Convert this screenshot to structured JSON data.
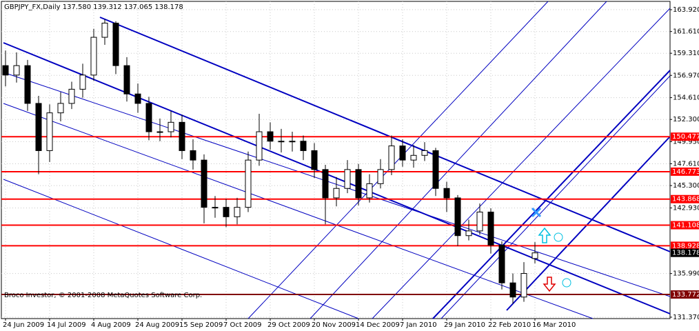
{
  "chart_data": {
    "type": "candlestick",
    "title": "GBPJPY_FX,Daily 137.580 139.312 137.065 138.178",
    "footer": "Broco Investor, © 2001-2008 MetaQuotes Software Corp.",
    "categories": [
      "24 Jun 2009",
      null,
      null,
      null,
      "14 Jul 2009",
      null,
      null,
      null,
      "4 Aug 2009",
      null,
      null,
      null,
      "24 Aug 2009",
      null,
      null,
      null,
      "15 Sep 2009",
      null,
      null,
      null,
      "7 Oct 2009",
      null,
      null,
      null,
      "29 Oct 2009",
      null,
      null,
      null,
      "20 Nov 2009",
      null,
      null,
      null,
      "14 Dec 2009",
      null,
      null,
      null,
      "7 Jan 2010",
      null,
      null,
      null,
      "29 Jan 2010",
      null,
      null,
      null,
      "22 Feb 2010",
      null,
      null,
      null,
      "16 Mar 2010"
    ],
    "open": [
      158,
      157,
      158,
      154,
      149,
      153,
      154,
      155.5,
      157,
      161,
      162.5,
      158,
      155,
      154,
      151,
      151,
      152,
      149,
      148,
      143,
      143,
      142,
      143,
      148,
      151,
      150,
      150,
      150,
      149,
      147,
      144,
      145,
      147,
      144,
      145.5,
      147,
      149.5,
      148,
      148.5,
      149,
      145,
      144,
      140,
      140.5,
      142.5,
      139,
      135,
      133.5,
      137.58
    ],
    "high": [
      159.6,
      159.4,
      158.6,
      154.8,
      153.9,
      155.2,
      156.3,
      158.2,
      161.9,
      162.9,
      162.7,
      158.9,
      156.1,
      154.7,
      152.4,
      153.2,
      152.8,
      150.2,
      148.6,
      144.2,
      143.9,
      144.0,
      148.9,
      152.9,
      152.0,
      151.3,
      151.0,
      150.6,
      149.8,
      147.5,
      146.2,
      148.0,
      147.6,
      146.5,
      148.1,
      150.6,
      150.2,
      149.6,
      149.9,
      149.3,
      145.7,
      144.3,
      141.7,
      143.4,
      142.9,
      139.4,
      136.0,
      137.2,
      139.312
    ],
    "low": [
      155.8,
      156.2,
      153.2,
      146.5,
      147.8,
      152.1,
      153.4,
      154.6,
      156.4,
      160.2,
      157.1,
      154.2,
      153.0,
      150.1,
      150.0,
      150.4,
      148.1,
      147.0,
      141.3,
      141.9,
      140.9,
      141.2,
      142.5,
      147.4,
      149.1,
      148.8,
      148.9,
      148.0,
      146.1,
      141.2,
      143.1,
      144.5,
      143.2,
      143.5,
      145.0,
      146.4,
      147.3,
      147.2,
      147.9,
      144.2,
      142.5,
      138.9,
      139.5,
      140.1,
      138.1,
      134.3,
      132.8,
      133.0,
      137.065
    ],
    "close": [
      157,
      158,
      154,
      149,
      153,
      154,
      155.5,
      157,
      161,
      162.5,
      158,
      155,
      154,
      151,
      151,
      152,
      149,
      148,
      143,
      143,
      142,
      143,
      148,
      151,
      150,
      150,
      150,
      149,
      147,
      144,
      145,
      147,
      144,
      145.5,
      147,
      149.5,
      148,
      148.5,
      149,
      145,
      144,
      140,
      140.5,
      142.5,
      139,
      135,
      133.5,
      136,
      138.178
    ],
    "up_color": "#ffffff",
    "down_color": "#000000",
    "levels": [
      150.477,
      146.773,
      143.868,
      141.108,
      138.928,
      133.772
    ],
    "level_colors": [
      "#ff0000",
      "#ff0000",
      "#ff0000",
      "#ff0000",
      "#ff0000",
      "#800000"
    ],
    "last_price": 138.178,
    "ylim": [
      131.22,
      164.8
    ],
    "yticks": [
      {
        "value": 163.92,
        "label": "163.920"
      },
      {
        "value": 161.61,
        "label": "161.610"
      },
      {
        "value": 159.31,
        "label": "159.310"
      },
      {
        "value": 156.97,
        "label": "156.970"
      },
      {
        "value": 154.61,
        "label": "154.610"
      },
      {
        "value": 152.3,
        "label": "152.300"
      },
      {
        "value": 149.95,
        "label": "149.950"
      },
      {
        "value": 147.61,
        "label": "147.610"
      },
      {
        "value": 145.3,
        "label": "145.300"
      },
      {
        "value": 142.93,
        "label": "142.930"
      },
      {
        "value": 135.99,
        "label": "135.990"
      },
      {
        "value": 131.37,
        "label": "131.370"
      }
    ],
    "grid": true
  }
}
